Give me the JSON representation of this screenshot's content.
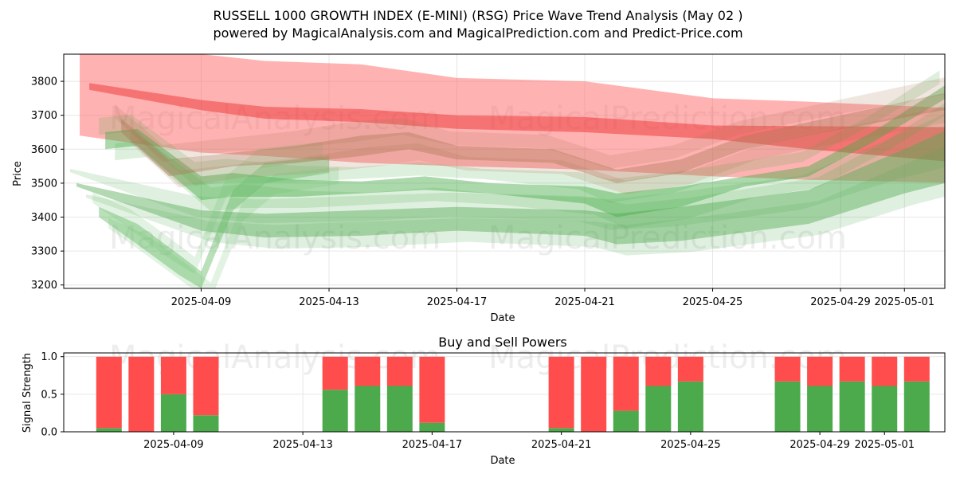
{
  "chart_data": [
    {
      "type": "area",
      "title": "RUSSELL 1000 GROWTH INDEX (E-MINI) (RSG) Price Wave Trend Analysis (May 02 )",
      "subtitle": "powered by MagicalAnalysis.com and MagicalPrediction.com and Predict-Price.com",
      "xlabel": "Date",
      "ylabel": "Price",
      "ylim": [
        3190,
        3880
      ],
      "grid": true,
      "x_tick_labels": [
        "2025-04-09",
        "2025-04-13",
        "2025-04-17",
        "2025-04-21",
        "2025-04-25",
        "2025-04-29",
        "2025-05-01"
      ],
      "x_tick_days": [
        9,
        13,
        17,
        21,
        25,
        29,
        31
      ],
      "y_ticks": [
        3200,
        3300,
        3400,
        3500,
        3600,
        3700,
        3800
      ],
      "watermarks": [
        "MagicalAnalysis.com",
        "MagicalPrediction.com"
      ],
      "series": [
        {
          "name": "red-upper-band",
          "color": "#ff6666",
          "x": [
            5.2,
            9,
            11,
            14,
            17,
            21,
            25,
            28,
            32.8
          ],
          "upper": [
            3880,
            3880,
            3860,
            3850,
            3810,
            3800,
            3750,
            3740,
            3720
          ],
          "lower": [
            3640,
            3590,
            3580,
            3560,
            3550,
            3540,
            3520,
            3510,
            3500
          ]
        },
        {
          "name": "red-trend-line",
          "color": "#ee3333",
          "x": [
            5.5,
            9,
            11,
            14,
            17,
            21,
            25,
            28,
            32.8
          ],
          "upper": [
            3795,
            3745,
            3725,
            3718,
            3700,
            3695,
            3670,
            3668,
            3665
          ],
          "lower": [
            3775,
            3715,
            3690,
            3680,
            3660,
            3650,
            3630,
            3600,
            3560
          ]
        },
        {
          "name": "green-lower-band",
          "color": "#55aa55",
          "x": [
            5.1,
            9,
            11,
            14,
            17,
            21,
            22,
            24,
            28,
            31,
            33.1
          ],
          "upper": [
            3500,
            3420,
            3410,
            3420,
            3430,
            3420,
            3410,
            3430,
            3480,
            3600,
            3690
          ],
          "lower": [
            3490,
            3360,
            3340,
            3345,
            3360,
            3345,
            3320,
            3330,
            3380,
            3470,
            3520
          ]
        },
        {
          "name": "green-wave-main",
          "color": "#44aa44",
          "x": [
            6,
            7,
            9,
            10,
            12,
            14,
            16,
            18,
            21,
            22,
            24,
            26,
            28,
            30,
            32.3
          ],
          "upper": [
            3650,
            3660,
            3520,
            3530,
            3510,
            3505,
            3520,
            3500,
            3490,
            3470,
            3490,
            3520,
            3550,
            3650,
            3790
          ],
          "lower": [
            3600,
            3610,
            3450,
            3460,
            3460,
            3470,
            3480,
            3470,
            3440,
            3400,
            3430,
            3490,
            3520,
            3620,
            3750
          ]
        },
        {
          "name": "green-wave-dip",
          "color": "#66bb66",
          "x": [
            5.8,
            7,
            8.3,
            9,
            10,
            11,
            13
          ],
          "upper": [
            3430,
            3380,
            3290,
            3240,
            3480,
            3560,
            3580
          ],
          "lower": [
            3400,
            3320,
            3230,
            3190,
            3420,
            3500,
            3530
          ]
        },
        {
          "name": "brown-wave",
          "color": "#aa7755",
          "x": [
            6.5,
            8,
            10,
            12,
            14,
            15.5,
            17,
            20,
            22,
            24,
            26,
            28,
            32.5
          ],
          "upper": [
            3690,
            3570,
            3590,
            3610,
            3640,
            3650,
            3610,
            3600,
            3540,
            3570,
            3640,
            3680,
            3770
          ],
          "lower": [
            3650,
            3520,
            3550,
            3560,
            3580,
            3600,
            3570,
            3560,
            3500,
            3530,
            3600,
            3640,
            3720
          ]
        }
      ]
    },
    {
      "type": "bar",
      "title": "Buy and Sell Powers",
      "xlabel": "Date",
      "ylabel": "Signal Strength",
      "ylim": [
        0,
        1.05
      ],
      "grid": true,
      "y_ticks": [
        0.0,
        0.5,
        1.0
      ],
      "y_tick_labels": [
        "0.0",
        "0.5",
        "1.0"
      ],
      "x_tick_labels": [
        "2025-04-09",
        "2025-04-13",
        "2025-04-17",
        "2025-04-21",
        "2025-04-25",
        "2025-04-29",
        "2025-05-01"
      ],
      "x_tick_days": [
        9,
        13,
        17,
        21,
        25,
        29,
        31
      ],
      "watermarks": [
        "MagicalAnalysis.com",
        "MagicalPrediction.com"
      ],
      "days": [
        7,
        8,
        9,
        10,
        14,
        15,
        16,
        17,
        21,
        22,
        23,
        24,
        25,
        28,
        29,
        30,
        31,
        32
      ],
      "series": [
        {
          "name": "Buy",
          "color": "#4caa4c",
          "values": [
            0.05,
            0.0,
            0.5,
            0.22,
            0.56,
            0.61,
            0.61,
            0.12,
            0.05,
            0.0,
            0.28,
            0.61,
            0.67,
            0.67,
            0.61,
            0.67,
            0.61,
            0.67
          ]
        },
        {
          "name": "Sell",
          "color": "#ff4c4c",
          "values": [
            0.95,
            1.0,
            0.5,
            0.78,
            0.44,
            0.39,
            0.39,
            0.88,
            0.95,
            1.0,
            0.72,
            0.39,
            0.33,
            0.33,
            0.39,
            0.33,
            0.39,
            0.33
          ]
        }
      ]
    }
  ]
}
